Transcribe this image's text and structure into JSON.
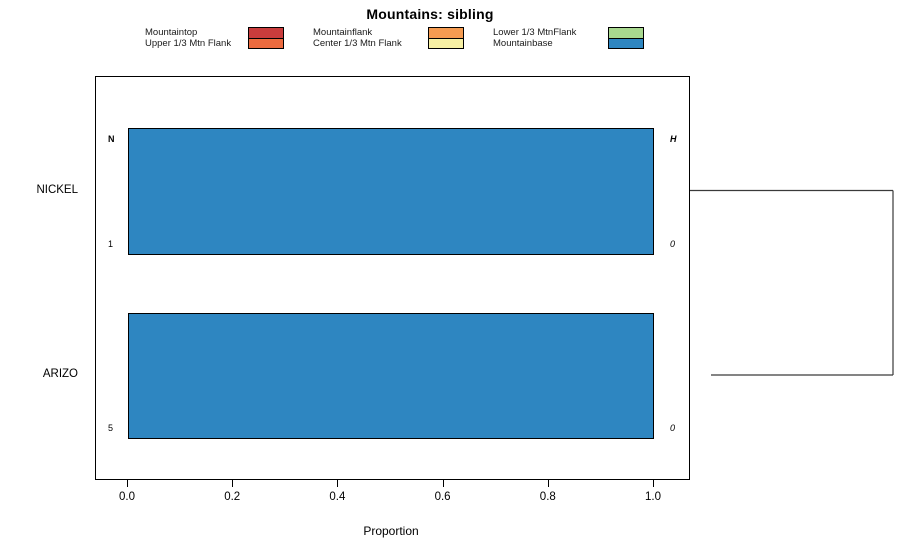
{
  "header": {
    "title": "Mountains: sibling"
  },
  "chart_data": {
    "type": "bar",
    "orientation": "horizontal",
    "title": "Mountains: sibling",
    "xlabel": "Proportion",
    "xlim": [
      0,
      1
    ],
    "xticks": [
      {
        "value": 0,
        "label": "0.0"
      },
      {
        "value": 0.2,
        "label": "0.2"
      },
      {
        "value": 0.4,
        "label": "0.4"
      },
      {
        "value": 0.6,
        "label": "0.6"
      },
      {
        "value": 0.8,
        "label": "0.8"
      },
      {
        "value": 1.0,
        "label": "1.0"
      }
    ],
    "categories": [
      "NICKEL",
      "ARIZO"
    ],
    "series": [
      {
        "name": "Mountaintop",
        "color": "#C93C3C",
        "values": [
          0,
          0
        ]
      },
      {
        "name": "Upper 1/3 Mtn Flank",
        "color": "#EC6B3F",
        "values": [
          0,
          0
        ]
      },
      {
        "name": "Mountainflank",
        "color": "#F59B51",
        "values": [
          0,
          0
        ]
      },
      {
        "name": "Center 1/3 Mtn Flank",
        "color": "#F7F0A4",
        "values": [
          0,
          0
        ]
      },
      {
        "name": "Lower 1/3 MtnFlank",
        "color": "#A8D88F",
        "values": [
          0,
          0
        ]
      },
      {
        "name": "Mountainbase",
        "color": "#2E86C1",
        "values": [
          1.0,
          1.0
        ]
      }
    ],
    "bar_annotations": [
      {
        "left_top": "N",
        "left_bottom": "1",
        "right_top": "H",
        "right_bottom": "0"
      },
      {
        "left_top": "",
        "left_bottom": "5",
        "right_top": "",
        "right_bottom": "0"
      }
    ],
    "legend_position": "top",
    "grid": false,
    "dendrogram_present": true
  }
}
